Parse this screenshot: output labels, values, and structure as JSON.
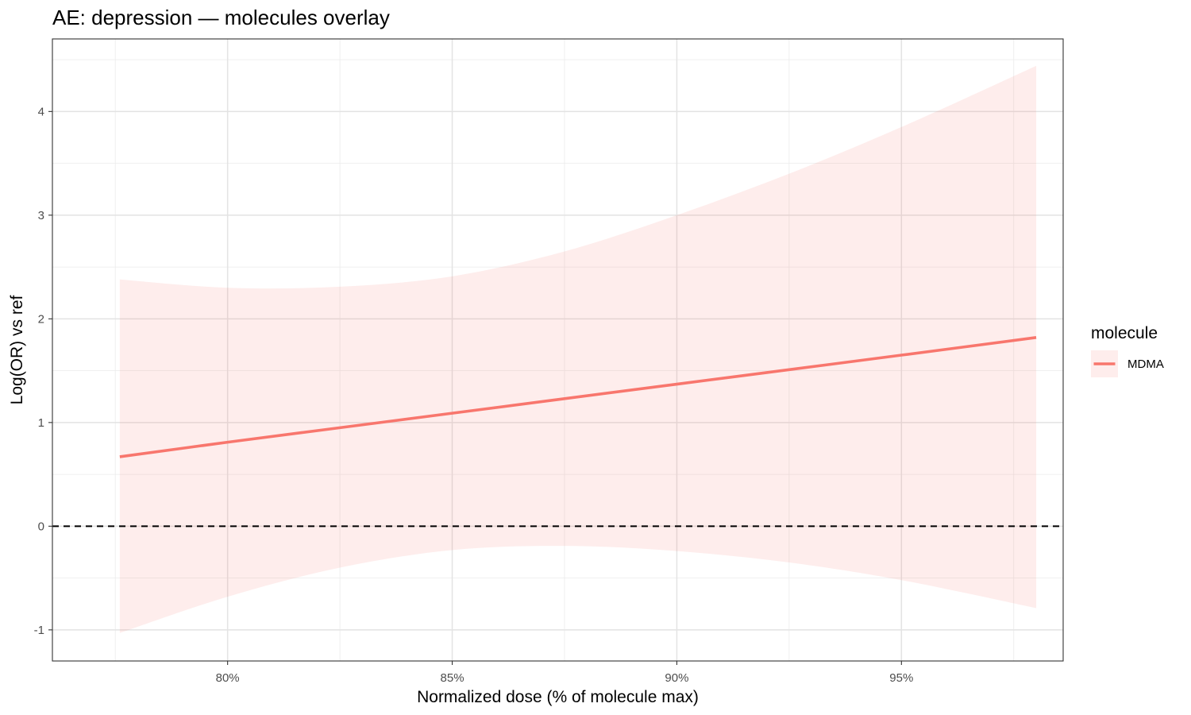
{
  "chart_data": {
    "type": "line",
    "title": "AE: depression — molecules overlay",
    "xlabel": "Normalized dose (% of molecule max)",
    "ylabel": "Log(OR) vs ref",
    "xlim": [
      76.1,
      98.6
    ],
    "ylim": [
      -1.3,
      4.7
    ],
    "x_ticks": [
      80,
      85,
      90,
      95
    ],
    "x_tick_labels": [
      "80%",
      "85%",
      "90%",
      "95%"
    ],
    "y_ticks": [
      -1,
      0,
      1,
      2,
      3,
      4
    ],
    "y_tick_labels": [
      "-1",
      "0",
      "1",
      "2",
      "3",
      "4"
    ],
    "reference_line": {
      "y": 0,
      "style": "dashed",
      "color": "#000000"
    },
    "grid": true,
    "legend": {
      "title": "molecule",
      "position": "right"
    },
    "series": [
      {
        "name": "MDMA",
        "color": "#F8766D",
        "ribbon_color": "#F8766D",
        "ribbon_opacity": 0.13,
        "x": [
          77.6,
          80.0,
          82.5,
          85.0,
          87.5,
          90.0,
          92.5,
          95.0,
          98.0
        ],
        "y": [
          0.67,
          0.81,
          0.95,
          1.09,
          1.23,
          1.37,
          1.51,
          1.65,
          1.82
        ],
        "lower": [
          -1.03,
          -0.68,
          -0.4,
          -0.23,
          -0.19,
          -0.24,
          -0.35,
          -0.52,
          -0.79
        ],
        "upper": [
          2.38,
          2.3,
          2.31,
          2.41,
          2.65,
          3.0,
          3.4,
          3.85,
          4.44
        ]
      }
    ]
  }
}
